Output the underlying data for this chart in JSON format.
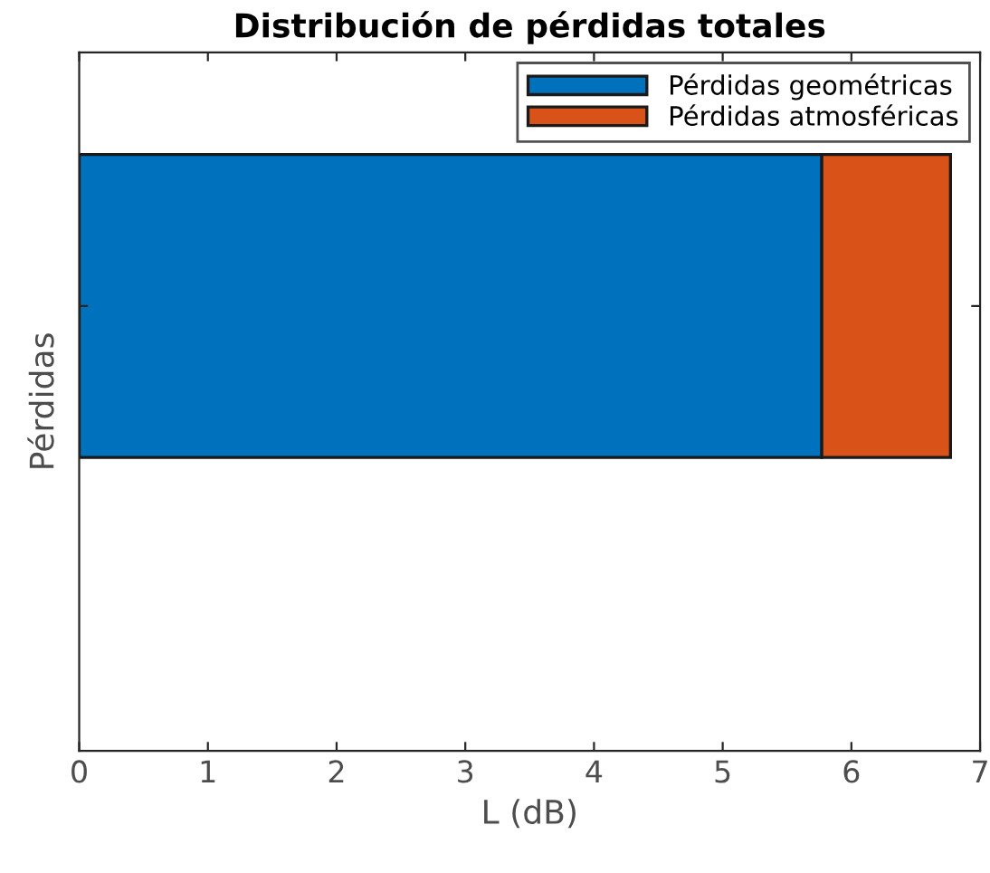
{
  "chart_data": {
    "type": "bar",
    "orientation": "horizontal",
    "stacked": true,
    "title": "Distribución de pérdidas totales",
    "xlabel": "L (dB)",
    "ylabel": "Pérdidas",
    "categories": [
      null
    ],
    "series": [
      {
        "name": "Pérdidas geométricas",
        "color": "#0072bd",
        "values": [
          5.77
        ]
      },
      {
        "name": "Pérdidas atmosféricas",
        "color": "#d95319",
        "values": [
          1.0
        ]
      }
    ],
    "xlim": [
      0,
      7
    ],
    "xticks": [
      0,
      1,
      2,
      3,
      4,
      5,
      6,
      7
    ],
    "legend": "top right",
    "grid": false
  }
}
